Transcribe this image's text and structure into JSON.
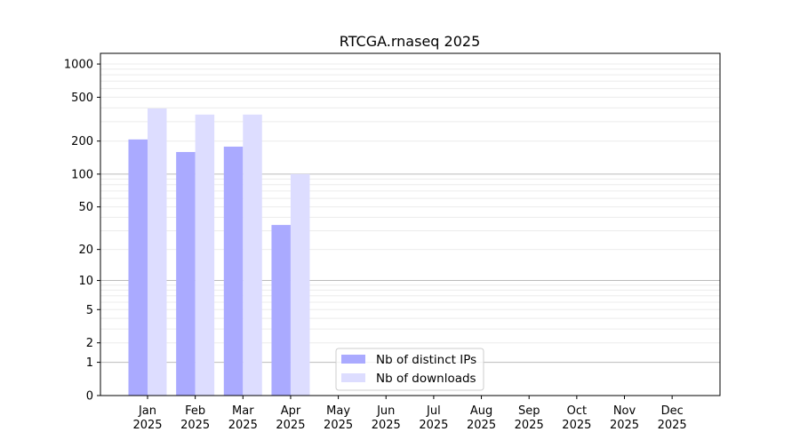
{
  "chart_data": {
    "type": "bar",
    "title": "RTCGA.rnaseq 2025",
    "xlabel": "",
    "ylabel": "",
    "yscale": "log(1+y)",
    "ylim": [
      0,
      1300
    ],
    "yticks": [
      0,
      1,
      2,
      5,
      10,
      20,
      50,
      100,
      200,
      500,
      1000
    ],
    "categories": [
      {
        "month": "Jan",
        "year": "2025"
      },
      {
        "month": "Feb",
        "year": "2025"
      },
      {
        "month": "Mar",
        "year": "2025"
      },
      {
        "month": "Apr",
        "year": "2025"
      },
      {
        "month": "May",
        "year": "2025"
      },
      {
        "month": "Jun",
        "year": "2025"
      },
      {
        "month": "Jul",
        "year": "2025"
      },
      {
        "month": "Aug",
        "year": "2025"
      },
      {
        "month": "Sep",
        "year": "2025"
      },
      {
        "month": "Oct",
        "year": "2025"
      },
      {
        "month": "Nov",
        "year": "2025"
      },
      {
        "month": "Dec",
        "year": "2025"
      }
    ],
    "series": [
      {
        "name": "Nb of distinct IPs",
        "color": "#aaaaff",
        "values": [
          207,
          159,
          178,
          34,
          0,
          0,
          0,
          0,
          0,
          0,
          0,
          0
        ]
      },
      {
        "name": "Nb of downloads",
        "color": "#ddddff",
        "values": [
          396,
          348,
          348,
          100,
          0,
          0,
          0,
          0,
          0,
          0,
          0,
          0
        ]
      }
    ],
    "grid": true,
    "legend_position": "lower-center"
  }
}
